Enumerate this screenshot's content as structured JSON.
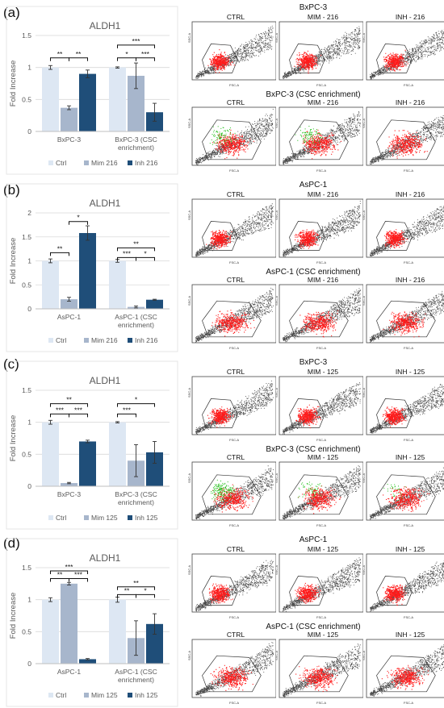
{
  "style": {
    "ctrl_color": "#dde7f3",
    "mim_color": "#a7b6cc",
    "inh_color": "#1f4e79",
    "axis_text": "#595959",
    "grid": "#d9d9d9",
    "flow_red": "#ff1a1a",
    "flow_green": "#22c01a",
    "flow_black": "#1a1a1a"
  },
  "panels": [
    {
      "label": "(a)",
      "chart": {
        "title": "ALDH1",
        "ylabel": "Fold Increase",
        "yticks": [
          "0",
          "0.5",
          "1",
          "1.5"
        ],
        "categories": [
          "BxPC-3",
          "BxPC-3 (CSC enrichment)"
        ],
        "cat_lines": [
          [
            "BxPC-3"
          ],
          [
            "BxPC-3 (CSC",
            "enrichment)"
          ]
        ],
        "legend": [
          "Ctrl",
          "Mim 216",
          "Inh 216"
        ],
        "sig": [
          "**",
          "**",
          "***",
          "*",
          "***"
        ]
      },
      "flow": {
        "top_title": "BxPC-3",
        "bottom_title": "BxPC-3 (CSC enrichment)",
        "top_labels": [
          "CTRL",
          "MIM - 216",
          "INH - 216"
        ],
        "bottom_labels": [
          "CTRL",
          "MIM - 216",
          "INH - 216"
        ]
      }
    },
    {
      "label": "(b)",
      "chart": {
        "title": "ALDH1",
        "ylabel": "Fold Increase",
        "yticks": [
          "0",
          "0.5",
          "1",
          "1.5",
          "2"
        ],
        "categories": [
          "AsPC-1",
          "AsPC-1 (CSC enrichment)"
        ],
        "cat_lines": [
          [
            "AsPC-1"
          ],
          [
            "AsPC-1 (CSC",
            "enrichment)"
          ]
        ],
        "legend": [
          "Ctrl",
          "Mim 216",
          "Inh 216"
        ],
        "sig": [
          "**",
          "*",
          "**",
          "***",
          "*"
        ]
      },
      "flow": {
        "top_title": "AsPC-1",
        "bottom_title": "AsPC-1 (CSC enrichment)",
        "top_labels": [
          "CTRL",
          "MIM - 216",
          "INH - 216"
        ],
        "bottom_labels": [
          "CTRL",
          "MIM - 216",
          "INH - 216"
        ]
      }
    },
    {
      "label": "(c)",
      "chart": {
        "title": "ALDH1",
        "ylabel": "Fold Increase",
        "yticks": [
          "0",
          "0.5",
          "1",
          "1.5"
        ],
        "categories": [
          "BxPC-3",
          "BxPC-3 (CSC enrichment)"
        ],
        "cat_lines": [
          [
            "BxPC-3"
          ],
          [
            "BxPC-3 (CSC",
            "enrichment)"
          ]
        ],
        "legend": [
          "Ctrl",
          "Mim 125",
          "Inh 125"
        ],
        "sig": [
          "**",
          "***",
          "***",
          "*",
          "***"
        ]
      },
      "flow": {
        "top_title": "BxPC-3",
        "bottom_title": "BxPC-3 (CSC enrichment)",
        "top_labels": [
          "CTRL",
          "MIM - 125",
          "INH - 125"
        ],
        "bottom_labels": [
          "CTRL",
          "MIM - 125",
          "INH - 125"
        ]
      }
    },
    {
      "label": "(d)",
      "chart": {
        "title": "ALDH1",
        "ylabel": "Fold Increase",
        "yticks": [
          "0",
          "0.5",
          "1",
          "1.5"
        ],
        "categories": [
          "AsPC-1",
          "AsPC-1 (CSC enrichment)"
        ],
        "cat_lines": [
          [
            "AsPC-1"
          ],
          [
            "AsPC-1 (CSC",
            "enrichment)"
          ]
        ],
        "legend": [
          "Ctrl",
          "Mim 125",
          "Inh 125"
        ],
        "sig": [
          "***",
          "**",
          "***",
          "**",
          "**",
          "*"
        ]
      },
      "flow": {
        "top_title": "AsPC-1",
        "bottom_title": "AsPC-1 (CSC enrichment)",
        "top_labels": [
          "CTRL",
          "MIM - 125",
          "INH - 125"
        ],
        "bottom_labels": [
          "CTRL",
          "MIM - 125",
          "INH - 125"
        ]
      }
    }
  ],
  "chart_data": [
    {
      "type": "bar",
      "title": "ALDH1",
      "ylabel": "Fold Increase",
      "ylim": [
        0,
        1.5
      ],
      "categories": [
        "BxPC-3",
        "BxPC-3 (CSC enrichment)"
      ],
      "series": [
        {
          "name": "Ctrl",
          "values": [
            1.0,
            1.0
          ],
          "errors": [
            0.03,
            0.01
          ]
        },
        {
          "name": "Mim 216",
          "values": [
            0.37,
            0.87
          ],
          "errors": [
            0.03,
            0.2
          ]
        },
        {
          "name": "Inh 216",
          "values": [
            0.9,
            0.3
          ],
          "errors": [
            0.06,
            0.14
          ]
        }
      ]
    },
    {
      "type": "bar",
      "title": "ALDH1",
      "ylabel": "Fold Increase",
      "ylim": [
        0,
        2
      ],
      "categories": [
        "AsPC-1",
        "AsPC-1 (CSC enrichment)"
      ],
      "series": [
        {
          "name": "Ctrl",
          "values": [
            1.0,
            1.0
          ],
          "errors": [
            0.04,
            0.03
          ]
        },
        {
          "name": "Mim 216",
          "values": [
            0.2,
            0.04
          ],
          "errors": [
            0.04,
            0.02
          ]
        },
        {
          "name": "Inh 216",
          "values": [
            1.58,
            0.19
          ],
          "errors": [
            0.15,
            0.01
          ]
        }
      ]
    },
    {
      "type": "bar",
      "title": "ALDH1",
      "ylabel": "Fold Increase",
      "ylim": [
        0,
        1.5
      ],
      "categories": [
        "BxPC-3",
        "BxPC-3 (CSC enrichment)"
      ],
      "series": [
        {
          "name": "Ctrl",
          "values": [
            1.0,
            1.0
          ],
          "errors": [
            0.03,
            0.01
          ]
        },
        {
          "name": "Mim 125",
          "values": [
            0.05,
            0.4
          ],
          "errors": [
            0.01,
            0.25
          ]
        },
        {
          "name": "Inh 125",
          "values": [
            0.7,
            0.53
          ],
          "errors": [
            0.02,
            0.17
          ]
        }
      ]
    },
    {
      "type": "bar",
      "title": "ALDH1",
      "ylabel": "Fold Increase",
      "ylim": [
        0,
        1.5
      ],
      "categories": [
        "AsPC-1",
        "AsPC-1 (CSC enrichment)"
      ],
      "series": [
        {
          "name": "Ctrl",
          "values": [
            1.0,
            1.0
          ],
          "errors": [
            0.03,
            0.04
          ]
        },
        {
          "name": "Mim 125",
          "values": [
            1.25,
            0.4
          ],
          "errors": [
            0.02,
            0.27
          ]
        },
        {
          "name": "Inh 125",
          "values": [
            0.07,
            0.62
          ],
          "errors": [
            0.01,
            0.16
          ]
        }
      ]
    }
  ]
}
